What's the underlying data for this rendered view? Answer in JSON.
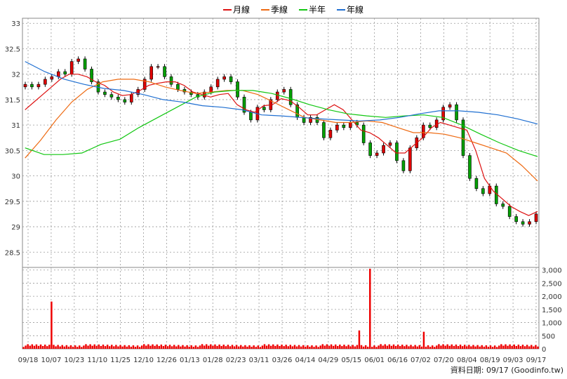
{
  "legend": [
    {
      "label": "月線",
      "color": "#dd1111"
    },
    {
      "label": "季線",
      "color": "#ee6a12"
    },
    {
      "label": "半年",
      "color": "#11c711"
    },
    {
      "label": "年線",
      "color": "#1f6fd1"
    }
  ],
  "footer": "資料日期: 09/17  (Goodinfo.tw)",
  "chart_data": {
    "type": "candlestick",
    "x_ticks": [
      "09/18",
      "10/07",
      "10/23",
      "11/10",
      "11/25",
      "12/10",
      "12/26",
      "01/13",
      "01/28",
      "02/23",
      "03/11",
      "03/26",
      "04/14",
      "04/29",
      "05/15",
      "06/01",
      "06/16",
      "07/02",
      "07/20",
      "08/04",
      "08/19",
      "09/03",
      "09/17"
    ],
    "y_ticks": [
      "33",
      "32.5",
      "32",
      "31.5",
      "31",
      "30.5",
      "30",
      "29.5",
      "29",
      "28.5"
    ],
    "ylim": [
      28.2,
      33.1
    ],
    "volume_ticks": [
      "3,000",
      "2,500",
      "2,000",
      "1,500",
      "1,000",
      "500",
      "0"
    ],
    "volume_ylim": [
      0,
      3100
    ],
    "closes": [
      31.8,
      31.75,
      31.8,
      31.9,
      31.95,
      32.05,
      32.0,
      32.25,
      32.3,
      32.1,
      31.85,
      31.65,
      31.6,
      31.55,
      31.5,
      31.45,
      31.6,
      31.7,
      31.9,
      32.15,
      32.15,
      31.95,
      31.8,
      31.7,
      31.65,
      31.6,
      31.55,
      31.65,
      31.75,
      31.9,
      31.95,
      31.85,
      31.55,
      31.25,
      31.1,
      31.35,
      31.3,
      31.5,
      31.65,
      31.7,
      31.4,
      31.15,
      31.05,
      31.15,
      31.05,
      30.75,
      30.9,
      31.0,
      30.95,
      31.05,
      31.0,
      30.65,
      30.4,
      30.45,
      30.6,
      30.65,
      30.3,
      30.1,
      30.55,
      30.75,
      31.0,
      30.95,
      31.1,
      31.35,
      31.4,
      31.1,
      30.4,
      29.95,
      29.75,
      29.65,
      29.8,
      29.45,
      29.4,
      29.2,
      29.1,
      29.05,
      29.1,
      29.25
    ],
    "ma_month": [
      31.3,
      31.45,
      31.6,
      31.75,
      31.9,
      32.0,
      32.0,
      31.95,
      31.85,
      31.78,
      31.65,
      31.58,
      31.6,
      31.68,
      31.78,
      31.82,
      31.85,
      31.85,
      31.78,
      31.65,
      31.6,
      31.55,
      31.6,
      31.62,
      31.4,
      31.3,
      31.25,
      31.38,
      31.4,
      31.52,
      31.48,
      31.35,
      31.2,
      31.2,
      31.3,
      31.4,
      31.3,
      31.1,
      30.9,
      30.85,
      30.75,
      30.6,
      30.45,
      30.45,
      30.6,
      30.75,
      30.95,
      31.05,
      31.0,
      30.95,
      30.9,
      30.5,
      29.95,
      29.7,
      29.55,
      29.4,
      29.3,
      29.22,
      29.3
    ],
    "ma_quarter": [
      30.35,
      30.7,
      31.1,
      31.45,
      31.7,
      31.85,
      31.9,
      31.9,
      31.85,
      31.75,
      31.68,
      31.62,
      31.65,
      31.68,
      31.68,
      31.6,
      31.45,
      31.3,
      31.15,
      31.1,
      31.05,
      31.05,
      31.08,
      31.05,
      30.95,
      30.85,
      30.85,
      30.82,
      30.75,
      30.65,
      30.55,
      30.45,
      30.2,
      29.9
    ],
    "ma_half": [
      30.55,
      30.42,
      30.42,
      30.45,
      30.62,
      30.72,
      30.95,
      31.15,
      31.35,
      31.55,
      31.65,
      31.68,
      31.68,
      31.62,
      31.52,
      31.4,
      31.3,
      31.22,
      31.18,
      31.15,
      31.18,
      31.2,
      31.15,
      31.0,
      30.82,
      30.65,
      30.5,
      30.38
    ],
    "ma_year": [
      32.25,
      32.05,
      31.9,
      31.8,
      31.72,
      31.68,
      31.6,
      31.5,
      31.45,
      31.38,
      31.35,
      31.3,
      31.2,
      31.18,
      31.15,
      31.12,
      31.1,
      31.08,
      31.1,
      31.15,
      31.22,
      31.28,
      31.28,
      31.25,
      31.2,
      31.12,
      31.02
    ],
    "volume_spikes": [
      {
        "x": "10/07",
        "value": 1800
      },
      {
        "x": "05/15",
        "value": 700
      },
      {
        "x": "05/18",
        "value": 3050
      },
      {
        "x": "07/01",
        "value": 650
      }
    ]
  }
}
